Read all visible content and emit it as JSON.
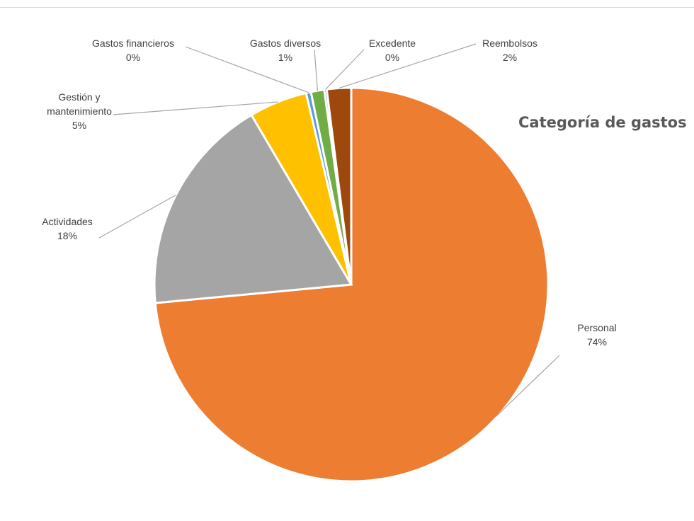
{
  "chart_data": {
    "type": "pie",
    "title": "Categoría de gastos",
    "slices": [
      {
        "name": "Personal",
        "value_label": "74%",
        "value": 73.8,
        "color": "#ed7d31"
      },
      {
        "name": "Actividades",
        "value_label": "18%",
        "value": 18.1,
        "color": "#a5a5a5"
      },
      {
        "name": "Gestión y mantenimiento",
        "name_lines": [
          "Gestión y",
          "mantenimiento"
        ],
        "value_label": "5%",
        "value": 4.8,
        "color": "#ffc000"
      },
      {
        "name": "Gastos financieros",
        "value_label": "0%",
        "value": 0.4,
        "color": "#5b9bd5"
      },
      {
        "name": "Gastos diversos",
        "value_label": "1%",
        "value": 1.1,
        "color": "#70ad47"
      },
      {
        "name": "Excedente",
        "value_label": "0%",
        "value": 0.2,
        "color": "#264478"
      },
      {
        "name": "Reembolsos",
        "value_label": "2%",
        "value": 2.0,
        "color": "#9e480e"
      }
    ],
    "start_angle_deg": 0,
    "direction": "clockwise",
    "legend": "none",
    "data_labels": "category-name-and-percent-with-leader-lines"
  }
}
